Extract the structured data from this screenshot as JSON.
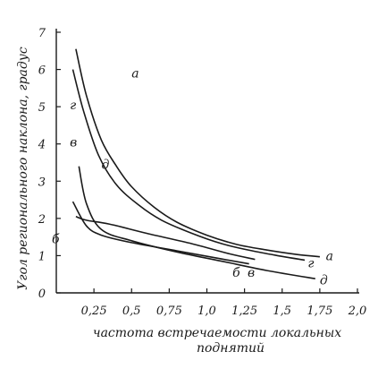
{
  "chart_data": {
    "type": "line",
    "xlabel_line1": "частота встречаемости локальных",
    "xlabel_line2": "поднятий",
    "ylabel": "Угол регионального наклона, градус",
    "xlim": [
      0,
      2.0
    ],
    "ylim": [
      0,
      7
    ],
    "x_ticks": [
      {
        "value": 0.25,
        "label": "0,25"
      },
      {
        "value": 0.5,
        "label": "0,5"
      },
      {
        "value": 0.75,
        "label": "0,75"
      },
      {
        "value": 1.0,
        "label": "1,0"
      },
      {
        "value": 1.25,
        "label": "1,25"
      },
      {
        "value": 1.5,
        "label": "1,5"
      },
      {
        "value": 1.75,
        "label": "1,75"
      },
      {
        "value": 2.0,
        "label": "2,0"
      }
    ],
    "y_ticks": [
      {
        "value": 0,
        "label": "0"
      },
      {
        "value": 1,
        "label": "1"
      },
      {
        "value": 2,
        "label": "2"
      },
      {
        "value": 3,
        "label": "3"
      },
      {
        "value": 4,
        "label": "4"
      },
      {
        "value": 5,
        "label": "5"
      },
      {
        "value": 6,
        "label": "6"
      },
      {
        "value": 7,
        "label": "7"
      }
    ],
    "series": [
      {
        "name": "а",
        "x": [
          0.13,
          0.2,
          0.3,
          0.4,
          0.5,
          0.65,
          0.8,
          1.0,
          1.2,
          1.4,
          1.6,
          1.75
        ],
        "y": [
          6.55,
          5.3,
          4.1,
          3.4,
          2.85,
          2.3,
          1.9,
          1.55,
          1.3,
          1.15,
          1.03,
          0.97
        ],
        "label_at": [
          1.79,
          1.0
        ]
      },
      {
        "name": "г",
        "x": [
          0.11,
          0.18,
          0.28,
          0.4,
          0.55,
          0.7,
          0.9,
          1.1,
          1.3,
          1.5,
          1.65
        ],
        "y": [
          6.0,
          4.9,
          3.7,
          2.9,
          2.35,
          1.95,
          1.6,
          1.32,
          1.13,
          0.98,
          0.88
        ],
        "label_at": [
          1.67,
          0.8
        ]
      },
      {
        "name": "д",
        "x": [
          0.15,
          0.2,
          0.3,
          0.5,
          0.8,
          1.1,
          1.4,
          1.72
        ],
        "y": [
          3.4,
          2.4,
          1.7,
          1.4,
          1.1,
          0.85,
          0.6,
          0.38
        ],
        "label_at": [
          1.75,
          0.35
        ]
      },
      {
        "name": "б",
        "x": [
          0.11,
          0.2,
          0.3,
          0.5,
          0.8,
          1.1,
          1.28
        ],
        "y": [
          2.45,
          1.8,
          1.55,
          1.35,
          1.13,
          0.91,
          0.78
        ],
        "label_at": [
          1.17,
          0.55
        ]
      },
      {
        "name": "в",
        "x": [
          0.13,
          0.2,
          0.35,
          0.6,
          0.9,
          1.15,
          1.32
        ],
        "y": [
          2.05,
          1.95,
          1.85,
          1.6,
          1.32,
          1.05,
          0.9
        ],
        "label_at": [
          1.27,
          0.55
        ]
      }
    ],
    "annotation_labels": [
      {
        "text": "а",
        "at": [
          0.5,
          5.9
        ]
      },
      {
        "text": "г",
        "at": [
          0.09,
          5.05
        ]
      },
      {
        "text": "в",
        "at": [
          0.09,
          4.05
        ]
      },
      {
        "text": "д",
        "at": [
          0.3,
          3.45
        ]
      },
      {
        "text": "б",
        "at": [
          -0.03,
          1.45
        ]
      }
    ]
  }
}
